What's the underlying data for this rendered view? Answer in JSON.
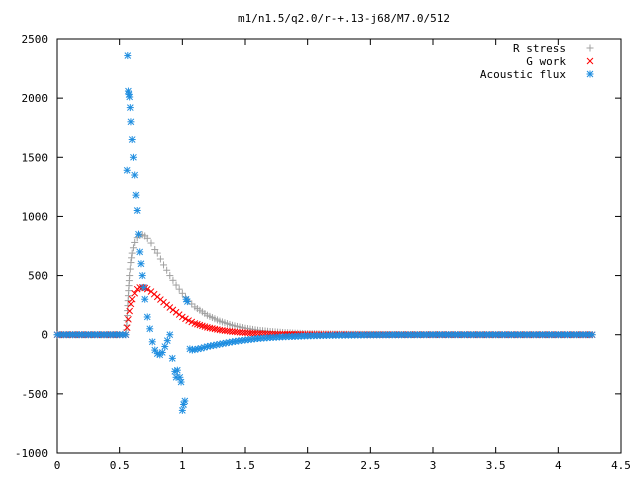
{
  "chart_data": {
    "type": "scatter",
    "title": "m1/n1.5/q2.0/r-+.13-j68/M7.0/512",
    "xlabel": "",
    "ylabel": "",
    "xlim": [
      0,
      4.5
    ],
    "ylim": [
      -1000,
      2500
    ],
    "grid": false,
    "legend_position": "top-right",
    "x_ticks": [
      "0",
      "0.5",
      "1",
      "1.5",
      "2",
      "2.5",
      "3",
      "3.5",
      "4",
      "4.5"
    ],
    "y_ticks": [
      "-1000",
      "-500",
      "0",
      "500",
      "1000",
      "1500",
      "2000",
      "2500"
    ],
    "series": [
      {
        "name": "R stress",
        "marker": "plus",
        "color": "#a0a0a0",
        "x": [
          0,
          0.25,
          0.5,
          0.55,
          0.56,
          0.57,
          0.58,
          0.59,
          0.6,
          0.62,
          0.64,
          0.66,
          0.68,
          0.7,
          0.72,
          0.75,
          0.78,
          0.8,
          0.85,
          0.9,
          0.95,
          1.0,
          1.05,
          1.1,
          1.2,
          1.3,
          1.4,
          1.5,
          1.6,
          1.7,
          1.8,
          1.9,
          2.0,
          2.2,
          2.4,
          2.6,
          3.0,
          3.5,
          4.0,
          4.27
        ],
        "y": [
          0,
          0,
          0,
          0,
          120,
          330,
          500,
          610,
          690,
          780,
          820,
          840,
          845,
          835,
          815,
          775,
          720,
          690,
          590,
          500,
          420,
          350,
          285,
          235,
          165,
          115,
          80,
          55,
          38,
          27,
          19,
          13,
          9,
          5,
          3,
          2,
          1,
          0,
          0,
          0
        ]
      },
      {
        "name": "G work",
        "marker": "x",
        "color": "#ff0000",
        "x": [
          0,
          0.25,
          0.5,
          0.55,
          0.56,
          0.57,
          0.58,
          0.59,
          0.6,
          0.62,
          0.64,
          0.66,
          0.68,
          0.7,
          0.72,
          0.75,
          0.8,
          0.85,
          0.9,
          0.95,
          1.0,
          1.05,
          1.1,
          1.2,
          1.3,
          1.4,
          1.5,
          1.6,
          1.7,
          1.8,
          2.0,
          2.2,
          2.5,
          3.0,
          3.5,
          4.0,
          4.27
        ],
        "y": [
          0,
          0,
          0,
          0,
          60,
          130,
          200,
          260,
          300,
          350,
          385,
          400,
          400,
          395,
          385,
          365,
          320,
          275,
          230,
          190,
          150,
          120,
          95,
          62,
          40,
          26,
          17,
          11,
          7,
          5,
          2,
          1,
          0,
          0,
          0,
          0,
          0
        ]
      },
      {
        "name": "Acoustic flux",
        "marker": "star",
        "color": "#1f8ee0",
        "x": [
          0,
          0.1,
          0.2,
          0.3,
          0.4,
          0.5,
          0.55,
          0.56,
          0.565,
          0.57,
          0.575,
          0.58,
          0.585,
          0.59,
          0.6,
          0.61,
          0.62,
          0.63,
          0.64,
          0.65,
          0.66,
          0.67,
          0.68,
          0.69,
          0.7,
          0.72,
          0.74,
          0.76,
          0.78,
          0.8,
          0.82,
          0.84,
          0.86,
          0.88,
          0.9,
          0.92,
          0.94,
          0.95,
          0.96,
          0.98,
          0.99,
          1.0,
          1.01,
          1.02,
          1.03,
          1.04,
          1.06,
          1.08,
          1.1,
          1.15,
          1.2,
          1.3,
          1.4,
          1.5,
          1.6,
          1.7,
          1.8,
          2.0,
          2.2,
          2.5,
          3.0,
          3.5,
          4.0,
          4.27
        ],
        "y": [
          0,
          0,
          0,
          0,
          0,
          0,
          0,
          1390,
          2360,
          2060,
          2030,
          2010,
          1920,
          1800,
          1650,
          1500,
          1350,
          1180,
          1050,
          850,
          700,
          600,
          500,
          400,
          300,
          150,
          50,
          -60,
          -130,
          -160,
          -170,
          -150,
          -100,
          -50,
          0,
          -200,
          -310,
          -360,
          -300,
          -360,
          -400,
          -640,
          -590,
          -560,
          300,
          280,
          -120,
          -130,
          -125,
          -115,
          -100,
          -80,
          -60,
          -45,
          -32,
          -24,
          -18,
          -10,
          -5,
          -2,
          0,
          0,
          0,
          0
        ]
      }
    ]
  }
}
